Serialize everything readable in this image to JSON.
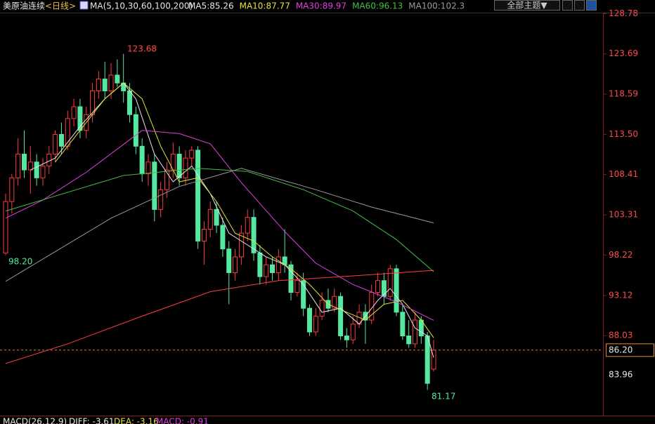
{
  "header": {
    "symbol": "美原油连续",
    "period": "<日线>",
    "indicator": "MA(5,10,30,60,100,200)",
    "theme_button": "全部主题▼"
  },
  "chart_data": {
    "type": "candlestick",
    "up_color": "#ff3c3c",
    "down_color": "#54e8a0",
    "ylim": [
      78.1,
      130.5
    ],
    "yticks": [
      128.78,
      123.69,
      118.59,
      {
        "value": 113.5,
        "label": "113.50"
      },
      108.41,
      103.31,
      98.22,
      93.12,
      88.03
    ],
    "last_price": {
      "value": 86.2,
      "label": "86.20"
    },
    "cursor_label": "83.96",
    "annotations": [
      "123.68",
      "98.20",
      "81.17"
    ],
    "ohlc": [
      [
        98.5,
        106,
        98.2,
        105
      ],
      [
        105,
        108.5,
        103.5,
        108
      ],
      [
        108,
        113,
        107,
        111
      ],
      [
        111,
        114,
        108,
        109
      ],
      [
        109,
        112,
        106,
        110
      ],
      [
        110,
        111,
        107,
        108
      ],
      [
        108,
        110.5,
        107,
        109.5
      ],
      [
        109.5,
        112,
        108.5,
        111
      ],
      [
        111,
        114,
        110,
        113.5
      ],
      [
        113.5,
        115,
        111,
        112
      ],
      [
        112,
        116.5,
        111.5,
        115.5
      ],
      [
        115.5,
        118,
        114.5,
        117
      ],
      [
        117,
        118,
        113,
        114
      ],
      [
        114,
        117,
        113,
        116
      ],
      [
        116,
        120,
        115,
        119
      ],
      [
        119,
        121.5,
        118,
        120.5
      ],
      [
        120.5,
        122.7,
        118,
        119
      ],
      [
        119,
        122.5,
        118,
        121
      ],
      [
        121,
        123,
        119.5,
        120
      ],
      [
        120,
        123.68,
        117.5,
        119
      ],
      [
        119,
        120,
        115,
        116
      ],
      [
        116,
        117,
        111,
        112
      ],
      [
        112,
        113,
        107.5,
        108.5
      ],
      [
        108.5,
        111,
        107,
        110
      ],
      [
        110,
        111,
        102.5,
        104
      ],
      [
        104,
        107.5,
        103,
        106.5
      ],
      [
        106.5,
        110,
        105.5,
        109
      ],
      [
        109,
        112.5,
        108,
        111
      ],
      [
        111,
        112,
        107,
        108
      ],
      [
        108,
        111.5,
        107,
        110.5
      ],
      [
        110.5,
        112,
        109.5,
        111.5
      ],
      [
        111.5,
        112,
        99,
        100
      ],
      [
        100,
        102.5,
        97,
        101.5
      ],
      [
        101.5,
        105,
        100.5,
        104
      ],
      [
        104,
        105,
        101,
        102
      ],
      [
        102,
        103,
        98,
        99
      ],
      [
        99,
        100,
        92,
        96
      ],
      [
        96,
        99,
        95,
        98
      ],
      [
        98,
        102,
        97,
        101
      ],
      [
        101,
        104,
        100,
        103
      ],
      [
        103,
        104,
        97.5,
        98.5
      ],
      [
        98.5,
        99.5,
        94.5,
        95.5
      ],
      [
        95.5,
        98,
        94.5,
        97
      ],
      [
        97,
        98,
        95,
        96
      ],
      [
        96,
        99,
        95,
        98
      ],
      [
        98,
        101.5,
        96,
        97
      ],
      [
        97,
        97.5,
        92.5,
        93.5
      ],
      [
        93.5,
        96,
        93,
        95
      ],
      [
        95,
        96,
        90.5,
        91.5
      ],
      [
        91.5,
        92,
        88,
        88.5
      ],
      [
        88.5,
        91.5,
        88,
        90.5
      ],
      [
        90.5,
        93.5,
        90,
        92.5
      ],
      [
        92.5,
        94,
        91,
        91.5
      ],
      [
        91.5,
        94,
        91,
        93
      ],
      [
        93,
        93.5,
        87.5,
        88
      ],
      [
        88,
        89,
        86.5,
        87.5
      ],
      [
        87.5,
        90.5,
        87,
        89.5
      ],
      [
        89.5,
        92,
        89,
        91
      ],
      [
        91,
        92,
        87,
        90
      ],
      [
        90,
        94.5,
        89.5,
        93.5
      ],
      [
        93.5,
        96,
        93,
        95
      ],
      [
        95,
        96,
        92,
        93
      ],
      [
        93,
        97,
        92.5,
        96.5
      ],
      [
        96.5,
        97,
        90.5,
        91
      ],
      [
        91,
        92,
        87.5,
        88
      ],
      [
        88,
        90,
        86.5,
        87
      ],
      [
        87,
        91,
        86.5,
        90
      ],
      [
        90,
        90.5,
        87,
        88
      ],
      [
        88,
        88.5,
        81.17,
        82
      ],
      [
        83.8,
        87.5,
        83.5,
        86.2
      ]
    ],
    "series": [
      {
        "name": "MA5:85.26",
        "color": "#e8e8e8",
        "x": [
          4,
          8,
          12,
          16,
          19,
          21,
          24,
          27,
          30,
          33,
          36,
          39,
          42,
          45,
          48,
          51,
          54,
          57,
          60,
          62,
          64,
          66,
          68,
          69
        ],
        "values": [
          109,
          110.5,
          114.5,
          118,
          120,
          118,
          111,
          107.5,
          109.5,
          106,
          101,
          99.5,
          98,
          97,
          94.5,
          91,
          91.5,
          89.5,
          92.5,
          94,
          92,
          89,
          88,
          85.26
        ]
      },
      {
        "name": "MA10:87.77",
        "color": "#e8e040",
        "x": [
          8,
          12,
          16,
          19,
          22,
          25,
          28,
          31,
          34,
          37,
          40,
          43,
          46,
          49,
          52,
          55,
          58,
          61,
          64,
          67,
          69
        ],
        "values": [
          110,
          114,
          118,
          120,
          118,
          112,
          107.5,
          108,
          105,
          101,
          100,
          98,
          96.5,
          94.5,
          92,
          91,
          90,
          92,
          92.5,
          90,
          87.77
        ]
      },
      {
        "name": "MA30:89.97",
        "color": "#e040e0",
        "x": [
          0,
          6,
          13,
          22,
          28,
          33,
          38,
          45,
          50,
          56,
          63,
          69
        ],
        "values": [
          102.9,
          105.2,
          108.7,
          114,
          113.6,
          112.3,
          107.4,
          101.2,
          97.2,
          94.5,
          92.3,
          89.97
        ]
      },
      {
        "name": "MA60:96.13",
        "color": "#40c040",
        "x": [
          0,
          19,
          31,
          39,
          48,
          56,
          63,
          69
        ],
        "values": [
          103.8,
          108.3,
          109.2,
          108.8,
          106.5,
          103.8,
          100.2,
          96.13
        ]
      },
      {
        "name": "MA100:102.3",
        "color": "#9a9a9a",
        "x": [
          0,
          17,
          28,
          38,
          50,
          59,
          69
        ],
        "values": [
          94.9,
          102.9,
          106.9,
          109.2,
          106.5,
          104.3,
          102.3
        ]
      },
      {
        "color": "#ff4040",
        "x": [
          0,
          10,
          22,
          33,
          44,
          56,
          69
        ],
        "values": [
          84.5,
          87,
          90.5,
          93.6,
          95,
          95.6,
          96.3
        ]
      }
    ]
  },
  "macd": {
    "title": "MACD(26,12,9)",
    "diff": "DIFF: -3.61",
    "dea": "DEA: -3.16",
    "macd": "MACD: -0.91"
  }
}
